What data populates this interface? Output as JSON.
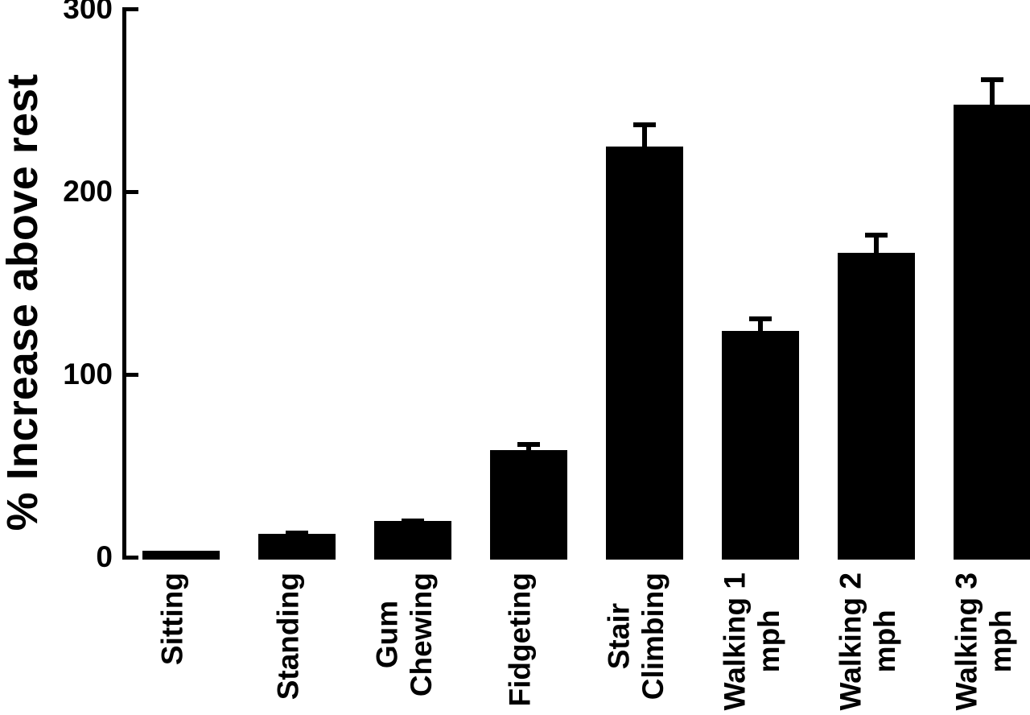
{
  "chart_data": {
    "type": "bar",
    "title": "",
    "xlabel": "",
    "ylabel": "% Increase above rest",
    "ylim": [
      0,
      300
    ],
    "yticks": [
      0,
      100,
      200,
      300
    ],
    "categories": [
      "Sitting",
      "Standing",
      "Gum Chewing",
      "Fidgeting",
      "Stair Climbing",
      "Walking 1 mph",
      "Walking 2 mph",
      "Walking 3 mph"
    ],
    "category_lines": [
      [
        "Sitting"
      ],
      [
        "Standing"
      ],
      [
        "Gum",
        "Chewing"
      ],
      [
        "Fidgeting"
      ],
      [
        "Stair",
        "Climbing"
      ],
      [
        "Walking 1",
        "mph"
      ],
      [
        "Walking 2",
        "mph"
      ],
      [
        "Walking 3",
        "mph"
      ]
    ],
    "values": [
      5,
      14,
      21,
      60,
      226,
      125,
      168,
      249
    ],
    "errors": [
      0,
      2,
      1.5,
      4.5,
      13,
      8,
      11,
      15
    ],
    "error_bar_style": "upper only, with caps",
    "grid": false,
    "legend": null,
    "colors": {
      "bar": "#000000",
      "axis": "#000000",
      "text": "#000000",
      "background": "#ffffff"
    }
  }
}
